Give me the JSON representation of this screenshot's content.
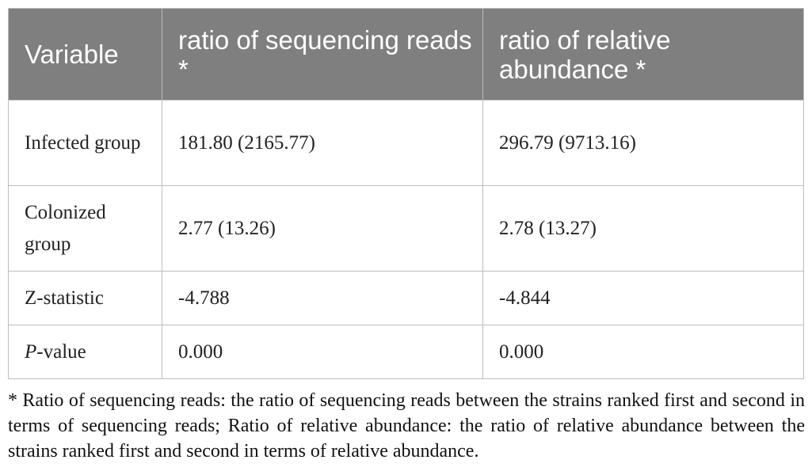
{
  "table": {
    "headers": [
      "Variable",
      "ratio of sequencing reads *",
      "ratio of relative abundance *"
    ],
    "rows": [
      {
        "variable": "Infected group",
        "reads": "181.80 (2165.77)",
        "abundance": "296.79 (9713.16)"
      },
      {
        "variable": "Colonized group",
        "reads": "2.77 (13.26)",
        "abundance": "2.78 (13.27)"
      },
      {
        "variable": "Z-statistic",
        "reads": "-4.788",
        "abundance": "-4.844"
      },
      {
        "variable_italic": "P",
        "variable_rest": "-value",
        "reads": "0.000",
        "abundance": "0.000"
      }
    ]
  },
  "footnote": "* Ratio of sequencing reads: the ratio of sequencing reads between the strains ranked first and second in terms of sequencing reads; Ratio of relative abundance: the ratio of relative abundance between the strains ranked first and second in terms of relative abundance.",
  "colors": {
    "header_bg": "#7f7f7f",
    "header_text": "#ffffff",
    "border": "#bdbdbd"
  }
}
